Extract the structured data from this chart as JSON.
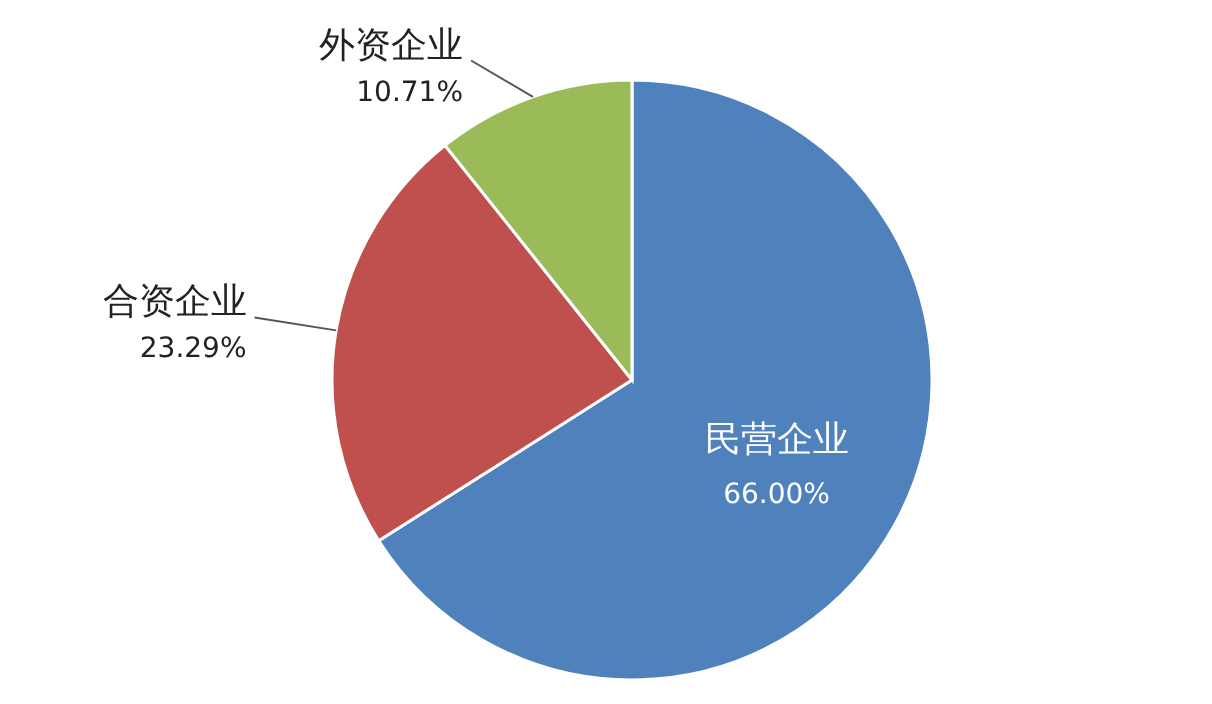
{
  "chart_data": {
    "type": "pie",
    "categories": [
      "民营企业",
      "合资企业",
      "外资企业"
    ],
    "values": [
      66,
      23.29,
      10.71
    ],
    "colors": [
      "#4f81bd",
      "#c0504d",
      "#9bbb59"
    ],
    "value_labels": [
      "66.00%",
      "23.29%",
      "10.71%"
    ]
  }
}
